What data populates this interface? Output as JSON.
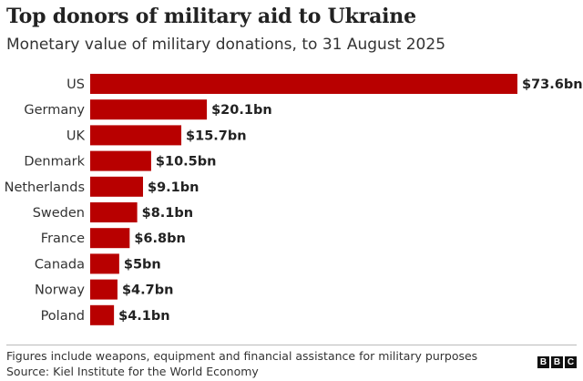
{
  "header": {
    "title": "Top donors of military aid to Ukraine",
    "subtitle": "Monetary value of military donations, to 31 August 2025"
  },
  "footer": {
    "note": "Figures include weapons, equipment and financial assistance for military purposes",
    "source": "Source: Kiel Institute for the World Economy",
    "logo_letters": [
      "B",
      "B",
      "C"
    ]
  },
  "colors": {
    "bar": "#b80000"
  },
  "chart_data": {
    "type": "bar",
    "orientation": "horizontal",
    "title": "Top donors of military aid to Ukraine",
    "subtitle": "Monetary value of military donations, to 31 August 2025",
    "categories": [
      "US",
      "Germany",
      "UK",
      "Denmark",
      "Netherlands",
      "Sweden",
      "France",
      "Canada",
      "Norway",
      "Poland"
    ],
    "values": [
      73.6,
      20.1,
      15.7,
      10.5,
      9.1,
      8.1,
      6.8,
      5,
      4.7,
      4.1
    ],
    "value_labels": [
      "$73.6bn",
      "$20.1bn",
      "$15.7bn",
      "$10.5bn",
      "$9.1bn",
      "$8.1bn",
      "$6.8bn",
      "$5bn",
      "$4.7bn",
      "$4.1bn"
    ],
    "unit": "bn",
    "xlim": [
      0,
      73.6
    ],
    "grid": false,
    "legend": "none"
  }
}
